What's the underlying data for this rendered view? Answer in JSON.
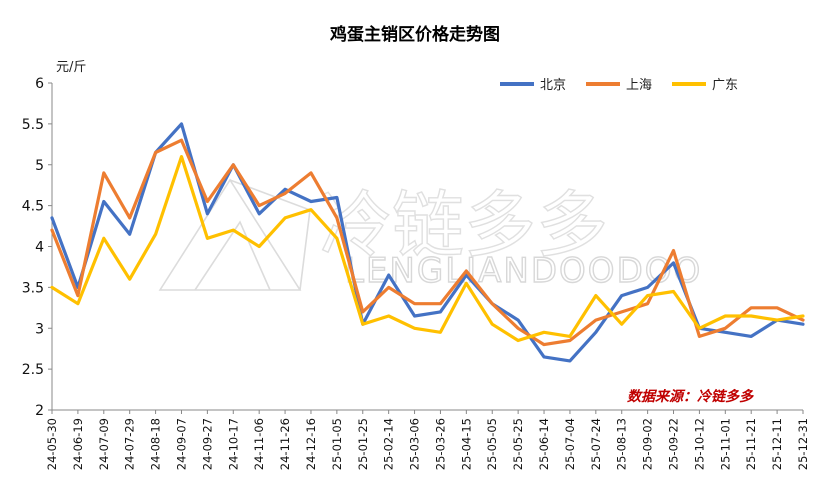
{
  "chart_data": {
    "type": "line",
    "title": "鸡蛋主销区价格走势图",
    "ylabel": "元/斤",
    "ylim": [
      2,
      6
    ],
    "yticks": [
      2,
      2.5,
      3,
      3.5,
      4,
      4.5,
      5,
      5.5,
      6
    ],
    "legend_position": "top-right",
    "source": "数据来源：冷链多多",
    "watermark": {
      "cn": "冷链多多",
      "en": "LENGLIANDOODOO"
    },
    "x_tick_labels": [
      "24-05-30",
      "24-06-19",
      "24-07-09",
      "24-07-29",
      "24-08-18",
      "24-09-07",
      "24-09-27",
      "24-10-17",
      "24-11-06",
      "24-11-26",
      "24-12-16",
      "25-01-05",
      "25-01-25",
      "25-02-14",
      "25-03-06",
      "25-03-26",
      "25-04-15",
      "25-05-05",
      "25-05-25",
      "25-06-14",
      "25-07-04",
      "25-07-24",
      "25-08-13",
      "25-09-02",
      "25-09-22",
      "25-10-12",
      "25-11-01",
      "25-11-21",
      "25-12-11",
      "25-12-31"
    ],
    "series": [
      {
        "name": "北京",
        "color": "#4472C4",
        "values": [
          4.35,
          3.5,
          4.55,
          4.15,
          5.15,
          5.5,
          4.4,
          5.0,
          4.4,
          4.7,
          4.55,
          4.6,
          3.05,
          3.65,
          3.15,
          3.2,
          3.65,
          3.3,
          3.1,
          2.65,
          2.6,
          2.95,
          3.4,
          3.5,
          3.8,
          3.0,
          2.95,
          2.9,
          3.1,
          3.05
        ]
      },
      {
        "name": "上海",
        "color": "#ED7D31",
        "values": [
          4.2,
          3.4,
          4.9,
          4.35,
          5.15,
          5.3,
          4.55,
          5.0,
          4.5,
          4.65,
          4.9,
          4.35,
          3.2,
          3.5,
          3.3,
          3.3,
          3.7,
          3.3,
          3.0,
          2.8,
          2.85,
          3.1,
          3.2,
          3.3,
          3.95,
          2.9,
          3.0,
          3.25,
          3.25,
          3.1
        ]
      },
      {
        "name": "广东",
        "color": "#FFC000",
        "values": [
          3.5,
          3.3,
          4.1,
          3.6,
          4.15,
          5.1,
          4.1,
          4.2,
          4.0,
          4.35,
          4.45,
          4.1,
          3.05,
          3.15,
          3.0,
          2.95,
          3.55,
          3.05,
          2.85,
          2.95,
          2.9,
          3.4,
          3.05,
          3.4,
          3.45,
          3.0,
          3.15,
          3.15,
          3.1,
          3.15
        ]
      }
    ]
  }
}
